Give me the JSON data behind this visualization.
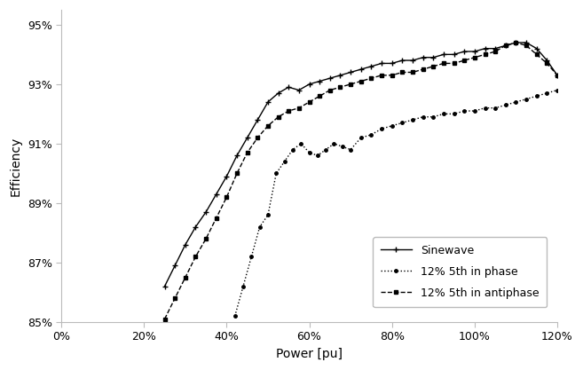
{
  "title": "",
  "xlabel": "Power [pu]",
  "ylabel": "Efficiency",
  "xlim": [
    0.0,
    1.2
  ],
  "ylim": [
    0.85,
    0.955
  ],
  "xticks": [
    0.0,
    0.2,
    0.4,
    0.6,
    0.8,
    1.0,
    1.2
  ],
  "yticks": [
    0.85,
    0.87,
    0.89,
    0.91,
    0.93,
    0.95
  ],
  "sinewave": {
    "x": [
      0.25,
      0.275,
      0.3,
      0.325,
      0.35,
      0.375,
      0.4,
      0.425,
      0.45,
      0.475,
      0.5,
      0.525,
      0.55,
      0.575,
      0.6,
      0.625,
      0.65,
      0.675,
      0.7,
      0.725,
      0.75,
      0.775,
      0.8,
      0.825,
      0.85,
      0.875,
      0.9,
      0.925,
      0.95,
      0.975,
      1.0,
      1.025,
      1.05,
      1.075,
      1.1,
      1.125,
      1.15,
      1.175,
      1.2
    ],
    "y": [
      0.862,
      0.869,
      0.876,
      0.882,
      0.887,
      0.893,
      0.899,
      0.906,
      0.912,
      0.918,
      0.924,
      0.927,
      0.929,
      0.928,
      0.93,
      0.931,
      0.932,
      0.933,
      0.934,
      0.935,
      0.936,
      0.937,
      0.937,
      0.938,
      0.938,
      0.939,
      0.939,
      0.94,
      0.94,
      0.941,
      0.941,
      0.942,
      0.942,
      0.943,
      0.944,
      0.944,
      0.942,
      0.938,
      0.933
    ]
  },
  "in_phase": {
    "x": [
      0.42,
      0.44,
      0.46,
      0.48,
      0.5,
      0.52,
      0.54,
      0.56,
      0.58,
      0.6,
      0.62,
      0.64,
      0.66,
      0.68,
      0.7,
      0.725,
      0.75,
      0.775,
      0.8,
      0.825,
      0.85,
      0.875,
      0.9,
      0.925,
      0.95,
      0.975,
      1.0,
      1.025,
      1.05,
      1.075,
      1.1,
      1.125,
      1.15,
      1.175,
      1.2
    ],
    "y": [
      0.852,
      0.862,
      0.872,
      0.882,
      0.886,
      0.9,
      0.904,
      0.908,
      0.91,
      0.907,
      0.906,
      0.908,
      0.91,
      0.909,
      0.908,
      0.912,
      0.913,
      0.915,
      0.916,
      0.917,
      0.918,
      0.919,
      0.919,
      0.92,
      0.92,
      0.921,
      0.921,
      0.922,
      0.922,
      0.923,
      0.924,
      0.925,
      0.926,
      0.927,
      0.928
    ]
  },
  "antiphase": {
    "x": [
      0.25,
      0.275,
      0.3,
      0.325,
      0.35,
      0.375,
      0.4,
      0.425,
      0.45,
      0.475,
      0.5,
      0.525,
      0.55,
      0.575,
      0.6,
      0.625,
      0.65,
      0.675,
      0.7,
      0.725,
      0.75,
      0.775,
      0.8,
      0.825,
      0.85,
      0.875,
      0.9,
      0.925,
      0.95,
      0.975,
      1.0,
      1.025,
      1.05,
      1.075,
      1.1,
      1.125,
      1.15,
      1.175,
      1.2
    ],
    "y": [
      0.851,
      0.858,
      0.865,
      0.872,
      0.878,
      0.885,
      0.892,
      0.9,
      0.907,
      0.912,
      0.916,
      0.919,
      0.921,
      0.922,
      0.924,
      0.926,
      0.928,
      0.929,
      0.93,
      0.931,
      0.932,
      0.933,
      0.933,
      0.934,
      0.934,
      0.935,
      0.936,
      0.937,
      0.937,
      0.938,
      0.939,
      0.94,
      0.941,
      0.943,
      0.944,
      0.943,
      0.94,
      0.937,
      0.933
    ]
  },
  "legend_labels": [
    "Sinewave",
    "12% 5th in phase",
    "12% 5th in antiphase"
  ],
  "line_color": "#000000",
  "background_color": "#ffffff"
}
